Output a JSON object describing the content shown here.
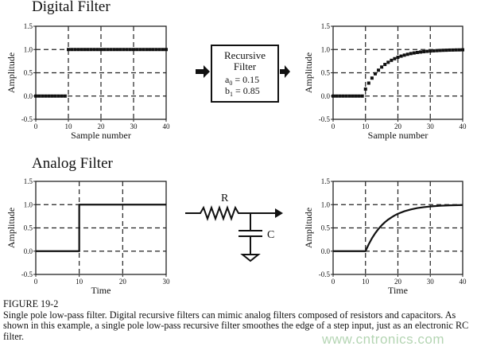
{
  "sections": {
    "digital_title": "Digital Filter",
    "analog_title": "Analog Filter"
  },
  "filter_box": {
    "line1": "Recursive",
    "line2": "Filter",
    "a0_label": "a",
    "a0_sub": "0",
    "a0_value": "= 0.15",
    "b1_label": "b",
    "b1_sub": "1",
    "b1_value": "= 0.85"
  },
  "circuit": {
    "resistor_label": "R",
    "capacitor_label": "C"
  },
  "caption": {
    "figure_label": "FIGURE 19-2",
    "text": "Single pole low-pass filter.  Digital recursive filters can mimic analog filters composed of resistors and capacitors.  As shown in this example, a single pole low-pass recursive filter smoothes the edge of a step input, just as an electronic RC filter."
  },
  "watermark": "www.cntronics.com",
  "chart_data": [
    {
      "id": "digital-input",
      "type": "scatter",
      "xlabel": "Sample number",
      "ylabel": "Amplitude",
      "xlim": [
        0,
        40
      ],
      "ylim": [
        -0.5,
        1.5
      ],
      "xticks": [
        "0",
        "10",
        "20",
        "30",
        "40"
      ],
      "yticks": [
        "1.5",
        "1.0",
        "0.5",
        "0.0",
        "-0.5"
      ],
      "grid": "dashed",
      "x": [
        0,
        1,
        2,
        3,
        4,
        5,
        6,
        7,
        8,
        9,
        10,
        11,
        12,
        13,
        14,
        15,
        16,
        17,
        18,
        19,
        20,
        21,
        22,
        23,
        24,
        25,
        26,
        27,
        28,
        29,
        30,
        31,
        32,
        33,
        34,
        35,
        36,
        37,
        38,
        39,
        40
      ],
      "y": [
        0,
        0,
        0,
        0,
        0,
        0,
        0,
        0,
        0,
        0,
        1,
        1,
        1,
        1,
        1,
        1,
        1,
        1,
        1,
        1,
        1,
        1,
        1,
        1,
        1,
        1,
        1,
        1,
        1,
        1,
        1,
        1,
        1,
        1,
        1,
        1,
        1,
        1,
        1,
        1,
        1
      ]
    },
    {
      "id": "digital-output",
      "type": "scatter",
      "xlabel": "Sample number",
      "ylabel": "Amplitude",
      "xlim": [
        0,
        40
      ],
      "ylim": [
        -0.5,
        1.5
      ],
      "xticks": [
        "0",
        "10",
        "20",
        "30",
        "40"
      ],
      "yticks": [
        "1.5",
        "1.0",
        "0.5",
        "0.0",
        "-0.5"
      ],
      "grid": "dashed",
      "x": [
        0,
        1,
        2,
        3,
        4,
        5,
        6,
        7,
        8,
        9,
        10,
        11,
        12,
        13,
        14,
        15,
        16,
        17,
        18,
        19,
        20,
        21,
        22,
        23,
        24,
        25,
        26,
        27,
        28,
        29,
        30,
        31,
        32,
        33,
        34,
        35,
        36,
        37,
        38,
        39,
        40
      ],
      "y": [
        0,
        0,
        0,
        0,
        0,
        0,
        0,
        0,
        0,
        0,
        0.15,
        0.278,
        0.386,
        0.478,
        0.556,
        0.623,
        0.679,
        0.725,
        0.768,
        0.803,
        0.833,
        0.858,
        0.879,
        0.897,
        0.913,
        0.926,
        0.937,
        0.946,
        0.954,
        0.961,
        0.967,
        0.972,
        0.976,
        0.98,
        0.983,
        0.985,
        0.988,
        0.989,
        0.991,
        0.992,
        0.994
      ]
    },
    {
      "id": "analog-input",
      "type": "line",
      "xlabel": "Time",
      "ylabel": "Amplitude",
      "xlim": [
        0,
        30
      ],
      "ylim": [
        -0.5,
        1.5
      ],
      "xticks": [
        "0",
        "10",
        "20",
        "30"
      ],
      "yticks": [
        "1.5",
        "1.0",
        "0.5",
        "0.0",
        "-0.5"
      ],
      "grid": "dashed",
      "x": [
        0,
        10,
        10,
        30
      ],
      "y": [
        0,
        0,
        1,
        1
      ]
    },
    {
      "id": "analog-output",
      "type": "line",
      "xlabel": "Time",
      "ylabel": "Amplitude",
      "xlim": [
        0,
        40
      ],
      "ylim": [
        -0.5,
        1.5
      ],
      "xticks": [
        "0",
        "10",
        "20",
        "30",
        "40"
      ],
      "yticks": [
        "1.5",
        "1.0",
        "0.5",
        "0.0",
        "-0.5"
      ],
      "grid": "dashed",
      "x": [
        0,
        10,
        11,
        12,
        13,
        14,
        15,
        16,
        17,
        18,
        19,
        20,
        22,
        24,
        26,
        28,
        30,
        33,
        36,
        40
      ],
      "y": [
        0,
        0,
        0.15,
        0.278,
        0.386,
        0.478,
        0.556,
        0.623,
        0.679,
        0.725,
        0.768,
        0.803,
        0.858,
        0.897,
        0.926,
        0.946,
        0.961,
        0.976,
        0.985,
        0.992
      ]
    }
  ]
}
